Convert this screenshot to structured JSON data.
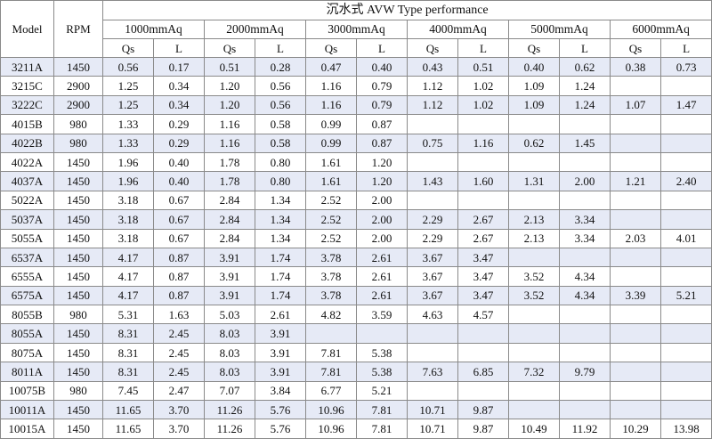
{
  "title": "沉水式 AVW Type performance",
  "headers": {
    "model": "Model",
    "rpm": "RPM",
    "pressures": [
      "1000mmAq",
      "2000mmAq",
      "3000mmAq",
      "4000mmAq",
      "5000mmAq",
      "6000mmAq"
    ],
    "qs": "Qs",
    "l": "L"
  },
  "rows": [
    {
      "model": "3211A",
      "rpm": "1450",
      "vals": [
        "0.56",
        "0.17",
        "0.51",
        "0.28",
        "0.47",
        "0.40",
        "0.43",
        "0.51",
        "0.40",
        "0.62",
        "0.38",
        "0.73"
      ]
    },
    {
      "model": "3215C",
      "rpm": "2900",
      "vals": [
        "1.25",
        "0.34",
        "1.20",
        "0.56",
        "1.16",
        "0.79",
        "1.12",
        "1.02",
        "1.09",
        "1.24",
        "",
        ""
      ]
    },
    {
      "model": "3222C",
      "rpm": "2900",
      "vals": [
        "1.25",
        "0.34",
        "1.20",
        "0.56",
        "1.16",
        "0.79",
        "1.12",
        "1.02",
        "1.09",
        "1.24",
        "1.07",
        "1.47"
      ]
    },
    {
      "model": "4015B",
      "rpm": "980",
      "vals": [
        "1.33",
        "0.29",
        "1.16",
        "0.58",
        "0.99",
        "0.87",
        "",
        "",
        "",
        "",
        "",
        ""
      ]
    },
    {
      "model": "4022B",
      "rpm": "980",
      "vals": [
        "1.33",
        "0.29",
        "1.16",
        "0.58",
        "0.99",
        "0.87",
        "0.75",
        "1.16",
        "0.62",
        "1.45",
        "",
        ""
      ]
    },
    {
      "model": "4022A",
      "rpm": "1450",
      "vals": [
        "1.96",
        "0.40",
        "1.78",
        "0.80",
        "1.61",
        "1.20",
        "",
        "",
        "",
        "",
        "",
        ""
      ]
    },
    {
      "model": "4037A",
      "rpm": "1450",
      "vals": [
        "1.96",
        "0.40",
        "1.78",
        "0.80",
        "1.61",
        "1.20",
        "1.43",
        "1.60",
        "1.31",
        "2.00",
        "1.21",
        "2.40"
      ]
    },
    {
      "model": "5022A",
      "rpm": "1450",
      "vals": [
        "3.18",
        "0.67",
        "2.84",
        "1.34",
        "2.52",
        "2.00",
        "",
        "",
        "",
        "",
        "",
        ""
      ]
    },
    {
      "model": "5037A",
      "rpm": "1450",
      "vals": [
        "3.18",
        "0.67",
        "2.84",
        "1.34",
        "2.52",
        "2.00",
        "2.29",
        "2.67",
        "2.13",
        "3.34",
        "",
        ""
      ]
    },
    {
      "model": "5055A",
      "rpm": "1450",
      "vals": [
        "3.18",
        "0.67",
        "2.84",
        "1.34",
        "2.52",
        "2.00",
        "2.29",
        "2.67",
        "2.13",
        "3.34",
        "2.03",
        "4.01"
      ]
    },
    {
      "model": "6537A",
      "rpm": "1450",
      "vals": [
        "4.17",
        "0.87",
        "3.91",
        "1.74",
        "3.78",
        "2.61",
        "3.67",
        "3.47",
        "",
        "",
        "",
        ""
      ]
    },
    {
      "model": "6555A",
      "rpm": "1450",
      "vals": [
        "4.17",
        "0.87",
        "3.91",
        "1.74",
        "3.78",
        "2.61",
        "3.67",
        "3.47",
        "3.52",
        "4.34",
        "",
        ""
      ]
    },
    {
      "model": "6575A",
      "rpm": "1450",
      "vals": [
        "4.17",
        "0.87",
        "3.91",
        "1.74",
        "3.78",
        "2.61",
        "3.67",
        "3.47",
        "3.52",
        "4.34",
        "3.39",
        "5.21"
      ]
    },
    {
      "model": "8055B",
      "rpm": "980",
      "vals": [
        "5.31",
        "1.63",
        "5.03",
        "2.61",
        "4.82",
        "3.59",
        "4.63",
        "4.57",
        "",
        "",
        "",
        ""
      ]
    },
    {
      "model": "8055A",
      "rpm": "1450",
      "vals": [
        "8.31",
        "2.45",
        "8.03",
        "3.91",
        "",
        "",
        "",
        "",
        "",
        "",
        "",
        ""
      ]
    },
    {
      "model": "8075A",
      "rpm": "1450",
      "vals": [
        "8.31",
        "2.45",
        "8.03",
        "3.91",
        "7.81",
        "5.38",
        "",
        "",
        "",
        "",
        "",
        ""
      ]
    },
    {
      "model": "8011A",
      "rpm": "1450",
      "vals": [
        "8.31",
        "2.45",
        "8.03",
        "3.91",
        "7.81",
        "5.38",
        "7.63",
        "6.85",
        "7.32",
        "9.79",
        "",
        ""
      ]
    },
    {
      "model": "10075B",
      "rpm": "980",
      "vals": [
        "7.45",
        "2.47",
        "7.07",
        "3.84",
        "6.77",
        "5.21",
        "",
        "",
        "",
        "",
        "",
        ""
      ]
    },
    {
      "model": "10011A",
      "rpm": "1450",
      "vals": [
        "11.65",
        "3.70",
        "11.26",
        "5.76",
        "10.96",
        "7.81",
        "10.71",
        "9.87",
        "",
        "",
        "",
        ""
      ]
    },
    {
      "model": "10015A",
      "rpm": "1450",
      "vals": [
        "11.65",
        "3.70",
        "11.26",
        "5.76",
        "10.96",
        "7.81",
        "10.71",
        "9.87",
        "10.49",
        "11.92",
        "10.29",
        "13.98"
      ]
    }
  ],
  "colors": {
    "stripe": "#e6eaf6",
    "border": "#8a8a8a"
  }
}
